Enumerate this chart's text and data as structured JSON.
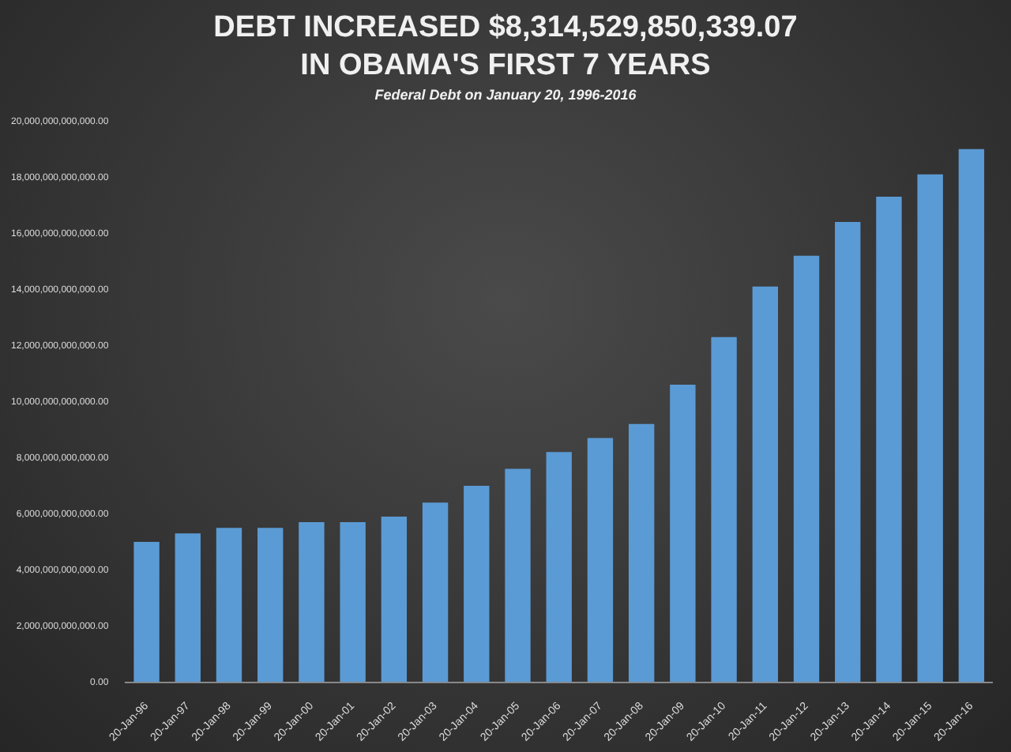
{
  "chart_data": {
    "type": "bar",
    "title": "DEBT INCREASED $8,314,529,850,339.07",
    "subtitle": "IN OBAMA'S FIRST 7 YEARS",
    "annotations": [
      "Federal Debt on January 20, 1996-2016"
    ],
    "categories": [
      "20-Jan-96",
      "20-Jan-97",
      "20-Jan-98",
      "20-Jan-99",
      "20-Jan-00",
      "20-Jan-01",
      "20-Jan-02",
      "20-Jan-03",
      "20-Jan-04",
      "20-Jan-05",
      "20-Jan-06",
      "20-Jan-07",
      "20-Jan-08",
      "20-Jan-09",
      "20-Jan-10",
      "20-Jan-11",
      "20-Jan-12",
      "20-Jan-13",
      "20-Jan-14",
      "20-Jan-15",
      "20-Jan-16"
    ],
    "values": [
      5000000000000,
      5300000000000,
      5500000000000,
      5500000000000,
      5700000000000,
      5700000000000,
      5900000000000,
      6400000000000,
      7000000000000,
      7600000000000,
      8200000000000,
      8700000000000,
      9200000000000,
      10600000000000,
      12300000000000,
      14100000000000,
      15200000000000,
      16400000000000,
      17300000000000,
      18100000000000,
      19000000000000
    ],
    "color": "#5b9bd5",
    "ylim": [
      0,
      20000000000000
    ],
    "yticks": [
      {
        "value": 0,
        "label": "0.00"
      },
      {
        "value": 2000000000000,
        "label": "2,000,000,000,000.00"
      },
      {
        "value": 4000000000000,
        "label": "4,000,000,000,000.00"
      },
      {
        "value": 6000000000000,
        "label": "6,000,000,000,000.00"
      },
      {
        "value": 8000000000000,
        "label": "8,000,000,000,000.00"
      },
      {
        "value": 10000000000000,
        "label": "10,000,000,000,000.00"
      },
      {
        "value": 12000000000000,
        "label": "12,000,000,000,000.00"
      },
      {
        "value": 14000000000000,
        "label": "14,000,000,000,000.00"
      },
      {
        "value": 16000000000000,
        "label": "16,000,000,000,000.00"
      },
      {
        "value": 18000000000000,
        "label": "18,000,000,000,000.00"
      },
      {
        "value": 20000000000000,
        "label": "20,000,000,000,000.00"
      }
    ],
    "grid": false,
    "legend": false
  }
}
